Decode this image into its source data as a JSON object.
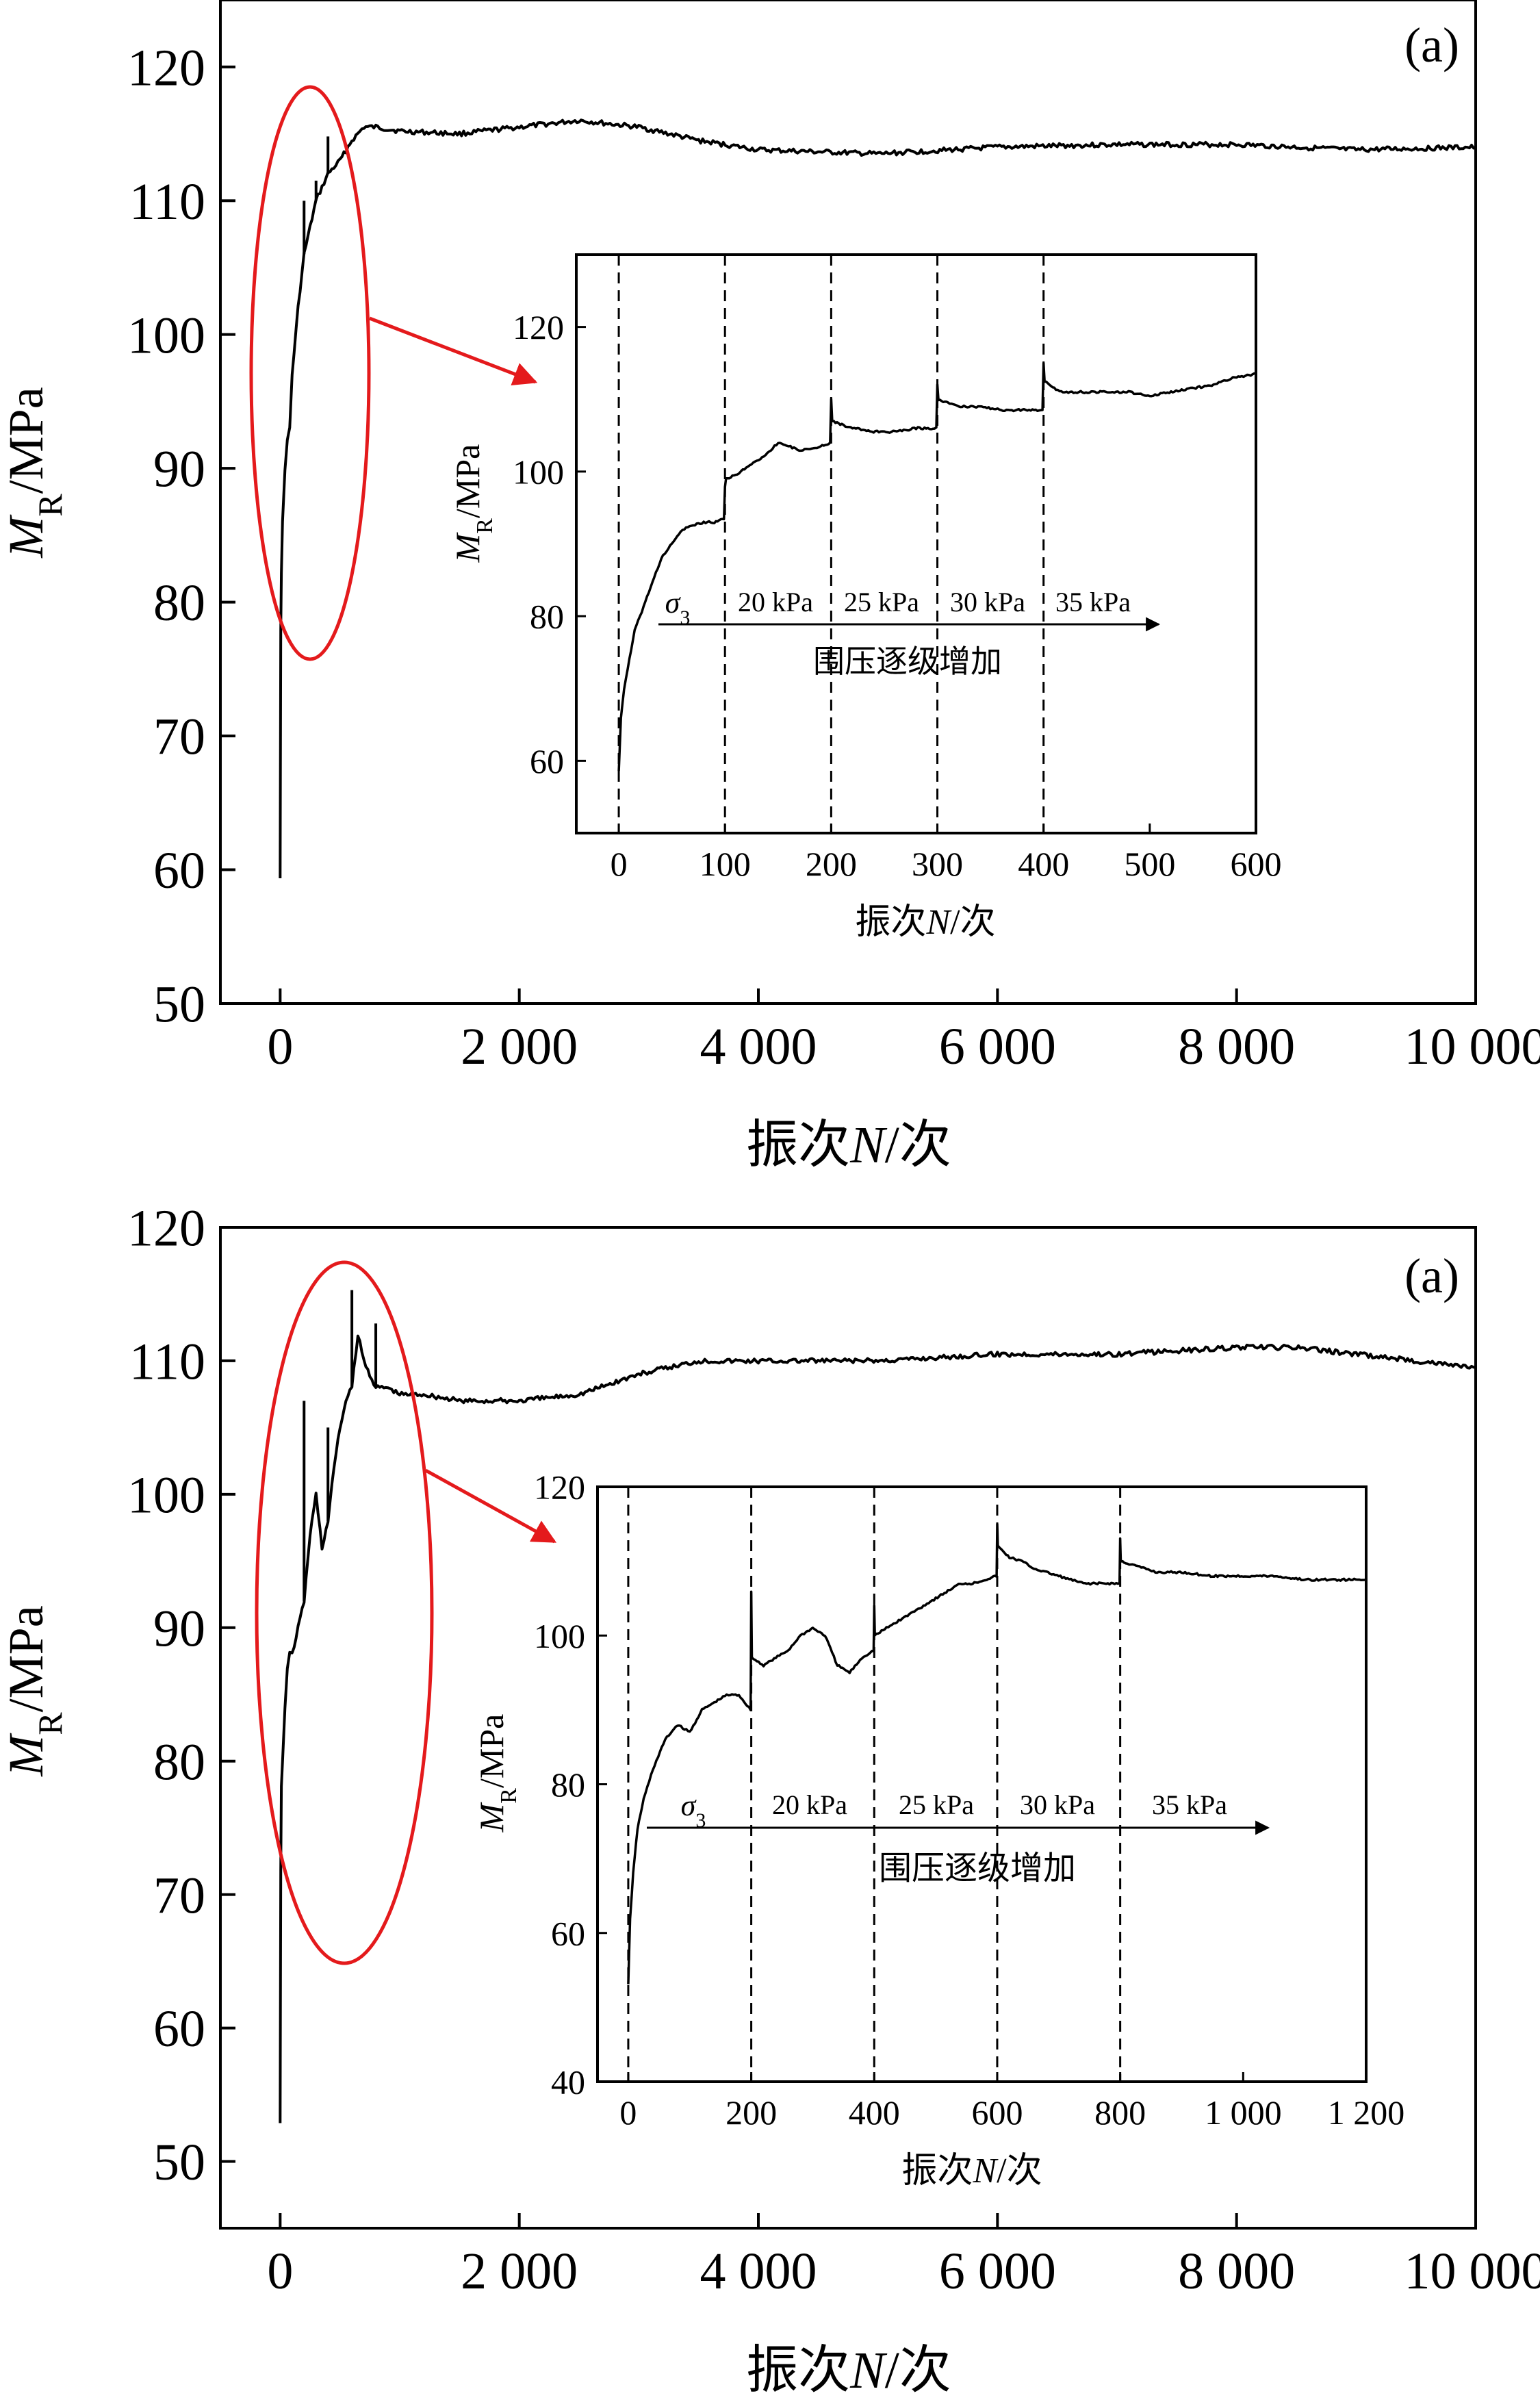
{
  "chart_data": [
    {
      "type": "line",
      "panel_label": "(a)",
      "xlabel": {
        "cn1": "振次",
        "var": "N",
        "cn2": "/次"
      },
      "ylabel": {
        "var": "M",
        "sub": "R",
        "unit": "/MPa"
      },
      "xlim": [
        -500,
        10000
      ],
      "ylim": [
        50,
        125
      ],
      "xticks": [
        0,
        2000,
        4000,
        6000,
        8000,
        10000
      ],
      "xtick_labels": [
        "0",
        "2 000",
        "4 000",
        "6 000",
        "8 000",
        "10 000"
      ],
      "yticks": [
        50,
        60,
        70,
        80,
        90,
        100,
        110,
        120
      ],
      "ytick_labels": [
        "50",
        "60",
        "70",
        "80",
        "90",
        "100",
        "110",
        "120"
      ],
      "series": [
        {
          "x": [
            0,
            5,
            10,
            20,
            40,
            60,
            80,
            100,
            150,
            200,
            250,
            300,
            350,
            400,
            450,
            500,
            600,
            700,
            800,
            1000,
            1500,
            2000,
            2500,
            3000,
            3500,
            4000,
            5000,
            6000,
            7000,
            8000,
            9000,
            10000
          ],
          "y": [
            59.5,
            78,
            82,
            86,
            90,
            92,
            93,
            97,
            102,
            106,
            108,
            110,
            111,
            112,
            112.5,
            113,
            114.5,
            115.5,
            115.5,
            115.2,
            115,
            115.5,
            116,
            115.5,
            114.5,
            113.8,
            113.5,
            114,
            114.2,
            114.2,
            113.8,
            114
          ]
        }
      ],
      "spikes": [
        {
          "x": 0,
          "y": 59.5
        },
        {
          "x": 200,
          "y": 110
        },
        {
          "x": 300,
          "y": 111.5
        },
        {
          "x": 400,
          "y": 114.8
        }
      ],
      "inset": {
        "xlabel": {
          "cn1": "振次",
          "var": "N",
          "cn2": "/次"
        },
        "ylabel": {
          "var": "M",
          "sub": "R",
          "unit": "/MPa"
        },
        "xlim": [
          -40,
          600
        ],
        "ylim": [
          50,
          130
        ],
        "xticks": [
          0,
          100,
          200,
          300,
          400,
          500,
          600
        ],
        "xtick_labels": [
          "0",
          "100",
          "200",
          "300",
          "400",
          "500",
          "600"
        ],
        "yticks": [
          60,
          80,
          100,
          120
        ],
        "ytick_labels": [
          "60",
          "80",
          "100",
          "120"
        ],
        "stage_lines": [
          0,
          100,
          200,
          300,
          400
        ],
        "sigma_label": "σ",
        "sigma_sub": "3",
        "stage_labels": [
          "20 kPa",
          "25 kPa",
          "30 kPa",
          "35 kPa"
        ],
        "arrow_label": "围压逐级增加",
        "series": [
          {
            "x": [
              0,
              2,
              5,
              10,
              15,
              20,
              30,
              40,
              50,
              60,
              70,
              80,
              90,
              99,
              100,
              101,
              110,
              120,
              130,
              140,
              150,
              160,
              170,
              180,
              190,
              199,
              200,
              201,
              210,
              220,
              240,
              260,
              280,
              299,
              300,
              301,
              310,
              320,
              340,
              360,
              380,
              399,
              400,
              401,
              410,
              420,
              440,
              460,
              480,
              500,
              520,
              540,
              560,
              580,
              600
            ],
            "y": [
              58.5,
              66,
              70,
              74,
              78,
              80,
              84,
              88,
              90,
              92,
              92.5,
              93,
              93,
              93.5,
              98,
              99,
              99.5,
              100.5,
              101.5,
              102.5,
              104,
              103.5,
              103,
              103,
              103.5,
              104,
              110,
              107,
              106.5,
              106,
              105.5,
              105.5,
              106,
              106,
              112,
              110,
              109.5,
              109,
              109,
              108.5,
              108.5,
              108.5,
              115,
              112.5,
              111.5,
              111,
              111,
              111,
              111,
              110.5,
              111,
              111.5,
              112,
              113,
              113.5
            ]
          }
        ]
      }
    },
    {
      "type": "line",
      "panel_label": "(a)",
      "xlabel": {
        "cn1": "振次",
        "var": "N",
        "cn2": "/次"
      },
      "ylabel": {
        "var": "M",
        "sub": "R",
        "unit": "/MPa"
      },
      "xlim": [
        -500,
        10000
      ],
      "ylim": [
        45,
        120
      ],
      "xticks": [
        0,
        2000,
        4000,
        6000,
        8000,
        10000
      ],
      "xtick_labels": [
        "0",
        "2 000",
        "4 000",
        "6 000",
        "8 000",
        "10 000"
      ],
      "yticks": [
        50,
        60,
        70,
        80,
        90,
        100,
        110,
        120
      ],
      "ytick_labels": [
        "50",
        "60",
        "70",
        "80",
        "90",
        "100",
        "110",
        "120"
      ],
      "series": [
        {
          "x": [
            0,
            5,
            10,
            20,
            40,
            60,
            80,
            100,
            150,
            200,
            250,
            300,
            350,
            400,
            450,
            500,
            550,
            600,
            650,
            700,
            750,
            800,
            900,
            1000,
            1200,
            1500,
            2000,
            2500,
            3000,
            3500,
            4000,
            5000,
            6000,
            7000,
            8000,
            8500,
            9000,
            10000
          ],
          "y": [
            53,
            72,
            78,
            80,
            84,
            87,
            88,
            88,
            90,
            92,
            97,
            100,
            96,
            98,
            102,
            105,
            107,
            108,
            112,
            110,
            109,
            108,
            108,
            107.5,
            107.5,
            107,
            107,
            107.5,
            109,
            110,
            110,
            110,
            110.5,
            110.5,
            111,
            111,
            110.5,
            109.5
          ]
        }
      ],
      "spikes": [
        {
          "x": 0,
          "y": 53
        },
        {
          "x": 200,
          "y": 107
        },
        {
          "x": 400,
          "y": 105
        },
        {
          "x": 600,
          "y": 115.3
        },
        {
          "x": 800,
          "y": 112.8
        }
      ],
      "inset": {
        "xlabel": {
          "cn1": "振次",
          "var": "N",
          "cn2": "/次"
        },
        "ylabel": {
          "var": "M",
          "sub": "R",
          "unit": "/MPa"
        },
        "xlim": [
          -50,
          1200
        ],
        "ylim": [
          40,
          120
        ],
        "xticks": [
          0,
          200,
          400,
          600,
          800,
          1000,
          1200
        ],
        "xtick_labels": [
          "0",
          "200",
          "400",
          "600",
          "800",
          "1 000",
          "1 200"
        ],
        "yticks": [
          40,
          60,
          80,
          100,
          120
        ],
        "ytick_labels": [
          "40",
          "60",
          "80",
          "100",
          "120"
        ],
        "stage_lines": [
          0,
          200,
          400,
          600,
          800
        ],
        "sigma_label": "σ",
        "sigma_sub": "3",
        "stage_labels": [
          "20 kPa",
          "25 kPa",
          "30 kPa",
          "35 kPa"
        ],
        "arrow_label": "围压逐级增加",
        "series": [
          {
            "x": [
              0,
              3,
              8,
              15,
              25,
              40,
              60,
              80,
              100,
              120,
              140,
              160,
              180,
              199,
              200,
              201,
              220,
              240,
              260,
              280,
              300,
              320,
              340,
              360,
              380,
              399,
              400,
              401,
              420,
              440,
              460,
              480,
              500,
              520,
              540,
              560,
              580,
              599,
              600,
              601,
              620,
              640,
              660,
              680,
              700,
              720,
              740,
              760,
              780,
              799,
              800,
              801,
              820,
              840,
              860,
              880,
              900,
              950,
              1000,
              1050,
              1100,
              1150,
              1200
            ],
            "y": [
              53,
              62,
              68,
              74,
              78,
              82,
              86,
              88,
              87,
              90,
              91,
              92,
              92,
              90,
              106,
              97,
              96,
              97,
              98,
              100,
              101,
              100,
              96,
              95,
              97,
              98,
              104,
              100,
              101,
              102,
              103,
              104,
              105,
              106,
              107,
              107,
              107.5,
              108,
              115,
              112,
              110.5,
              110,
              109,
              108.5,
              108,
              107.5,
              107,
              107,
              107,
              107,
              113,
              110,
              109.5,
              109,
              108.5,
              108.5,
              108.5,
              108,
              108,
              108,
              107.5,
              107.5,
              107.5
            ]
          }
        ]
      }
    }
  ]
}
